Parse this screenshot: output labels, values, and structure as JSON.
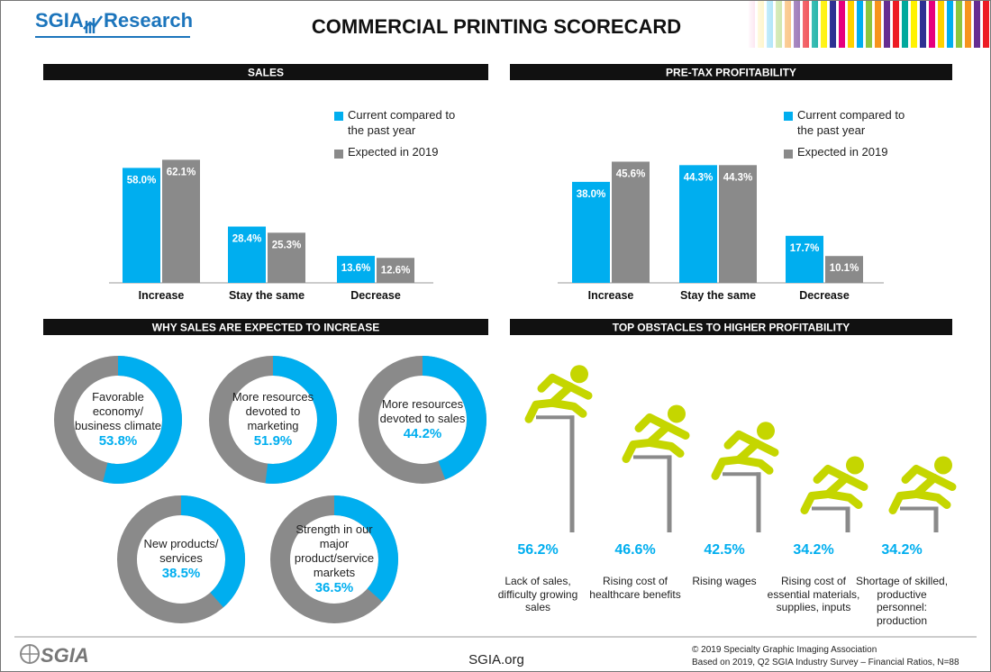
{
  "header": {
    "brand": "SGIA",
    "brand_suffix": "Research",
    "title": "COMMERCIAL PRINTING SCORECARD"
  },
  "chart_data": [
    {
      "type": "bar",
      "title": "SALES",
      "categories": [
        "Increase",
        "Stay the same",
        "Decrease"
      ],
      "series": [
        {
          "name": "Current compared to the past year",
          "color": "#00aeef",
          "values": [
            58.0,
            28.4,
            13.6
          ],
          "value_labels": [
            "58.0%",
            "28.4%",
            "13.6%"
          ]
        },
        {
          "name": "Expected in 2019",
          "color": "#8a8a8a",
          "values": [
            62.1,
            25.3,
            12.6
          ],
          "value_labels": [
            "62.1%",
            "25.3%",
            "12.6%"
          ]
        }
      ]
    },
    {
      "type": "bar",
      "title": "PRE-TAX PROFITABILITY",
      "categories": [
        "Increase",
        "Stay the same",
        "Decrease"
      ],
      "series": [
        {
          "name": "Current compared to the past year",
          "color": "#00aeef",
          "values": [
            38.0,
            44.3,
            17.7
          ],
          "value_labels": [
            "38.0%",
            "44.3%",
            "17.7%"
          ]
        },
        {
          "name": "Expected in 2019",
          "color": "#8a8a8a",
          "values": [
            45.6,
            44.3,
            10.1
          ],
          "value_labels": [
            "45.6%",
            "44.3%",
            "10.1%"
          ]
        }
      ]
    },
    {
      "type": "donut",
      "title": "WHY SALES ARE EXPECTED TO INCREASE",
      "color": "#00aeef",
      "track_color": "#8a8a8a",
      "categories": [
        "Favorable economy/ business climate",
        "More resources devoted to marketing",
        "More resources devoted to sales",
        "New products/ services",
        "Strength in our major product/service markets"
      ],
      "values": [
        53.8,
        51.9,
        44.2,
        38.5,
        36.5
      ],
      "value_labels": [
        "53.8%",
        "51.9%",
        "44.2%",
        "38.5%",
        "36.5%"
      ]
    },
    {
      "type": "hurdle",
      "title": "TOP OBSTACLES TO HIGHER PROFITABILITY",
      "color": "#00aeef",
      "figure_color": "#c5d600",
      "categories": [
        "Lack of sales, difficulty growing sales",
        "Rising cost of healthcare benefits",
        "Rising wages",
        "Rising cost of essential materials, supplies, inputs",
        "Shortage of skilled, productive personnel: production"
      ],
      "values": [
        56.2,
        46.6,
        42.5,
        34.2,
        34.2
      ],
      "value_labels": [
        "56.2%",
        "46.6%",
        "42.5%",
        "34.2%",
        "34.2%"
      ]
    }
  ],
  "footer": {
    "logo": "SGIA",
    "url": "SGIA.org",
    "copyright": "© 2019 Specialty Graphic Imaging Association",
    "source": "Based on 2019, Q2 SGIA Industry Survey – Financial Ratios, N=88"
  }
}
